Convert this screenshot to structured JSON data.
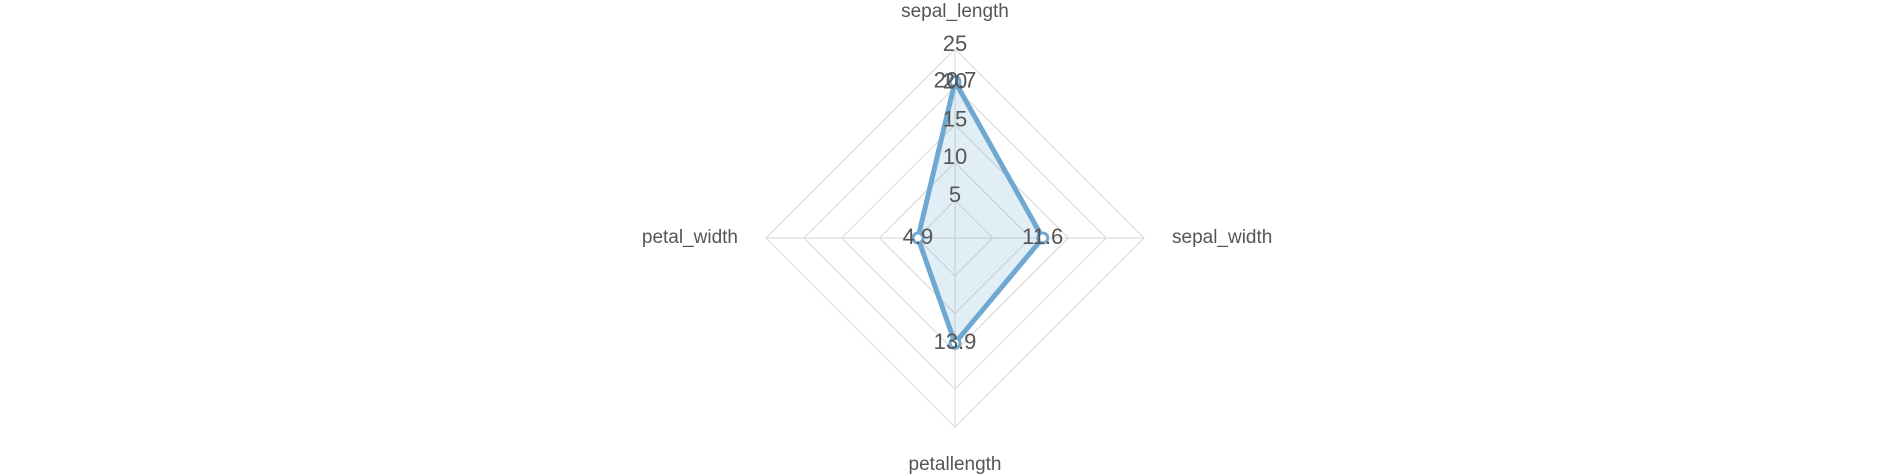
{
  "chart_data": {
    "type": "radar",
    "categories": [
      "sepal_length",
      "sepal_width",
      "petallength",
      "petal_width"
    ],
    "values": [
      20.7,
      11.6,
      13.9,
      4.9
    ],
    "color": "#6fa8d0",
    "rlim": [
      0,
      25
    ],
    "rticks": [
      5,
      10,
      15,
      20,
      25
    ],
    "grid": true,
    "data_labels": true
  }
}
